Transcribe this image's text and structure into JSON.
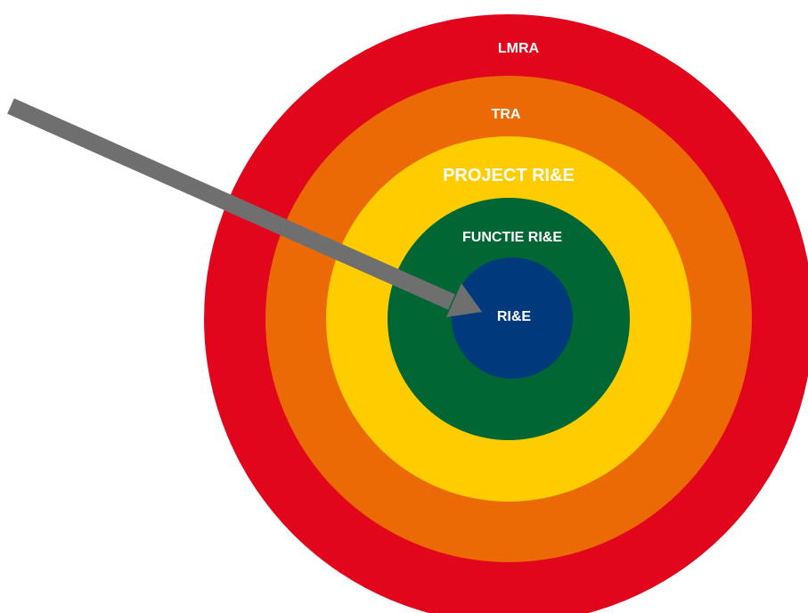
{
  "diagram": {
    "rings": [
      {
        "id": "lmra",
        "label": "LMRA",
        "color": "#E2061C"
      },
      {
        "id": "tra",
        "label": "TRA",
        "color": "#EC6A05"
      },
      {
        "id": "project",
        "label": "PROJECT RI&E",
        "color": "#FFCC00"
      },
      {
        "id": "functie",
        "label": "FUNCTIE RI&E",
        "color": "#006633"
      },
      {
        "id": "rie",
        "label": "RI&E",
        "color": "#003A7D"
      }
    ],
    "arrow": {
      "color": "#6F6F6F"
    }
  }
}
